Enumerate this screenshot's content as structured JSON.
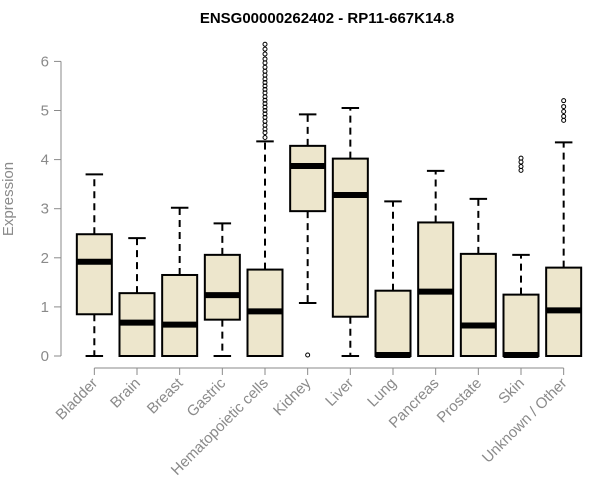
{
  "chart_data": {
    "type": "boxplot",
    "title": "ENSG00000262402 - RP11-667K14.8",
    "xlabel": "",
    "ylabel": "Expression",
    "ylim": [
      0,
      6.5
    ],
    "yticks": [
      0,
      1,
      2,
      3,
      4,
      5,
      6
    ],
    "grid": false,
    "colors": {
      "box_fill": "#ede6cc",
      "stroke": "#000000",
      "axis_text": "#8a8a8a"
    },
    "categories": [
      "Bladder",
      "Brain",
      "Breast",
      "Gastric",
      "Hematopoietic cells",
      "Kidney",
      "Liver",
      "Lung",
      "Pancreas",
      "Prostate",
      "Skin",
      "Unknown / Other"
    ],
    "boxes": [
      {
        "category": "Bladder",
        "min": 0,
        "q1": 0.85,
        "median": 1.92,
        "q3": 2.48,
        "max": 3.7,
        "outliers": []
      },
      {
        "category": "Brain",
        "min": 0,
        "q1": 0,
        "median": 0.68,
        "q3": 1.28,
        "max": 2.4,
        "outliers": []
      },
      {
        "category": "Breast",
        "min": 0,
        "q1": 0,
        "median": 0.64,
        "q3": 1.65,
        "max": 3.02,
        "outliers": []
      },
      {
        "category": "Gastric",
        "min": 0,
        "q1": 0.74,
        "median": 1.24,
        "q3": 2.06,
        "max": 2.7,
        "outliers": []
      },
      {
        "category": "Hematopoietic cells",
        "min": 0,
        "q1": 0,
        "median": 0.91,
        "q3": 1.76,
        "max": 4.37,
        "outliers": [
          4.45,
          4.55,
          4.62,
          4.7,
          4.78,
          4.86,
          4.93,
          5.0,
          5.07,
          5.14,
          5.21,
          5.28,
          5.36,
          5.43,
          5.5,
          5.57,
          5.64,
          5.72,
          5.8,
          5.88,
          5.97,
          6.05,
          6.15,
          6.25,
          6.35
        ]
      },
      {
        "category": "Kidney",
        "min": 1.08,
        "q1": 2.95,
        "median": 3.87,
        "q3": 4.28,
        "max": 4.92,
        "outliers": [
          0.02
        ]
      },
      {
        "category": "Liver",
        "min": 0,
        "q1": 0.8,
        "median": 3.28,
        "q3": 4.02,
        "max": 5.05,
        "outliers": []
      },
      {
        "category": "Lung",
        "min": 0,
        "q1": 0,
        "median": 0.02,
        "q3": 1.33,
        "max": 3.15,
        "outliers": []
      },
      {
        "category": "Pancreas",
        "min": 0,
        "q1": 0,
        "median": 1.31,
        "q3": 2.72,
        "max": 3.77,
        "outliers": []
      },
      {
        "category": "Prostate",
        "min": 0,
        "q1": 0,
        "median": 0.62,
        "q3": 2.08,
        "max": 3.2,
        "outliers": []
      },
      {
        "category": "Skin",
        "min": 0,
        "q1": 0,
        "median": 0.02,
        "q3": 1.25,
        "max": 2.06,
        "outliers": [
          3.78,
          3.86,
          3.95,
          4.03
        ]
      },
      {
        "category": "Unknown / Other",
        "min": 0,
        "q1": 0,
        "median": 0.93,
        "q3": 1.8,
        "max": 4.35,
        "outliers": [
          4.8,
          4.88,
          4.98,
          5.08,
          5.2
        ]
      }
    ]
  }
}
